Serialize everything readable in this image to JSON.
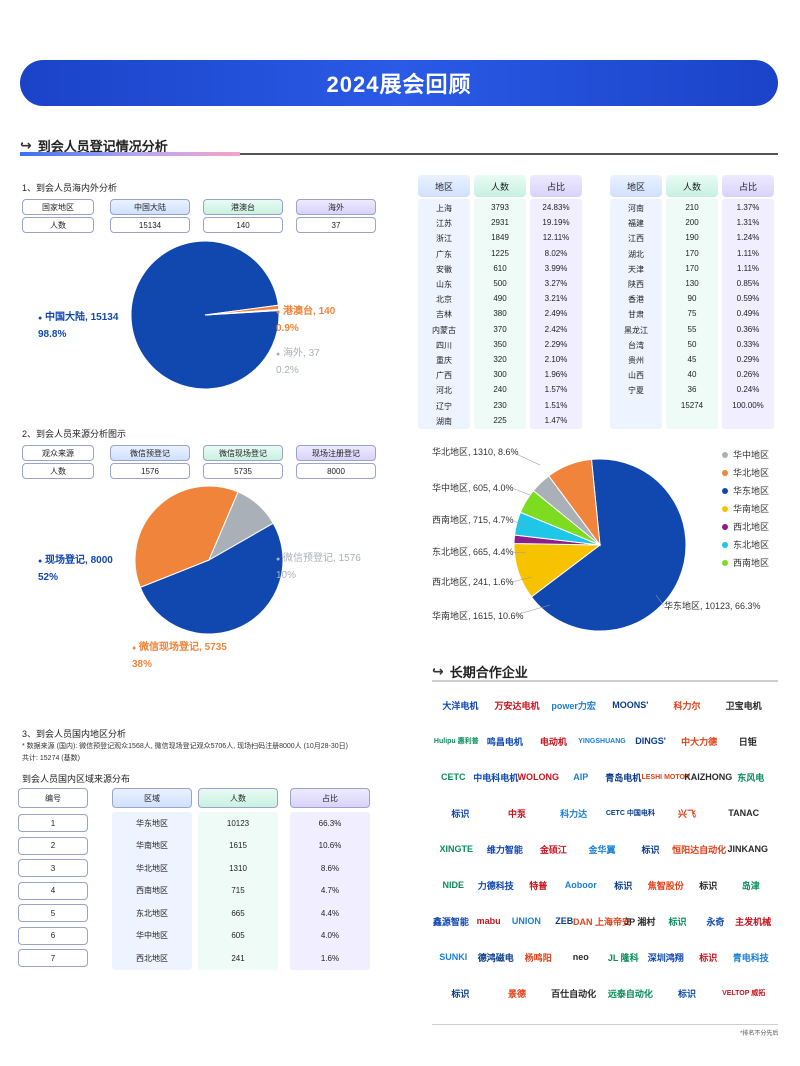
{
  "banner": {
    "title": "2024展会回顾"
  },
  "section1": {
    "title": "到会人员登记情况分析"
  },
  "sub1": {
    "title": "1、到会人员海内外分析",
    "row_label_1": "国家地区",
    "row_label_2": "人数",
    "headers": [
      "中国大陆",
      "港澳台",
      "海外"
    ],
    "values": [
      "15134",
      "140",
      "37"
    ]
  },
  "pie1": {
    "labels": [
      {
        "name": "中国大陆, 15134",
        "pct": "98.8%",
        "color": "#1048b0"
      },
      {
        "name": "港澳台, 140",
        "pct": "0.9%",
        "color": "#f0843a"
      },
      {
        "name": "海外, 37",
        "pct": "0.2%",
        "color": "#aab0b8"
      }
    ]
  },
  "provinces": {
    "header": [
      "地区",
      "人数",
      "占比"
    ],
    "left": [
      [
        "上海",
        "3793",
        "24.83%"
      ],
      [
        "江苏",
        "2931",
        "19.19%"
      ],
      [
        "浙江",
        "1849",
        "12.11%"
      ],
      [
        "广东",
        "1225",
        "8.02%"
      ],
      [
        "安徽",
        "610",
        "3.99%"
      ],
      [
        "山东",
        "500",
        "3.27%"
      ],
      [
        "北京",
        "490",
        "3.21%"
      ],
      [
        "吉林",
        "380",
        "2.49%"
      ],
      [
        "内蒙古",
        "370",
        "2.42%"
      ],
      [
        "四川",
        "350",
        "2.29%"
      ],
      [
        "重庆",
        "320",
        "2.10%"
      ],
      [
        "广西",
        "300",
        "1.96%"
      ],
      [
        "河北",
        "240",
        "1.57%"
      ],
      [
        "辽宁",
        "230",
        "1.51%"
      ],
      [
        "湖南",
        "225",
        "1.47%"
      ]
    ],
    "right": [
      [
        "河南",
        "210",
        "1.37%"
      ],
      [
        "福建",
        "200",
        "1.31%"
      ],
      [
        "江西",
        "190",
        "1.24%"
      ],
      [
        "湖北",
        "170",
        "1.11%"
      ],
      [
        "天津",
        "170",
        "1.11%"
      ],
      [
        "陕西",
        "130",
        "0.85%"
      ],
      [
        "香港",
        "90",
        "0.59%"
      ],
      [
        "甘肃",
        "75",
        "0.49%"
      ],
      [
        "黑龙江",
        "55",
        "0.36%"
      ],
      [
        "台湾",
        "50",
        "0.33%"
      ],
      [
        "贵州",
        "45",
        "0.29%"
      ],
      [
        "山西",
        "40",
        "0.26%"
      ],
      [
        "宁夏",
        "36",
        "0.24%"
      ],
      [
        "",
        "15274",
        "100.00%"
      ]
    ]
  },
  "sub2": {
    "title": "2、到会人员来源分析图示",
    "row_label_1": "观众来源",
    "row_label_2": "人数",
    "headers": [
      "微信预登记",
      "微信现场登记",
      "现场注册登记"
    ],
    "values": [
      "1576",
      "5735",
      "8000"
    ]
  },
  "pie2": {
    "labels": [
      {
        "name": "现场登记, 8000",
        "pct": "52%",
        "color": "#1048b0"
      },
      {
        "name": "微信预登记, 1576",
        "pct": "10%",
        "color": "#aab0b8"
      },
      {
        "name": "微信现场登记, 5735",
        "pct": "38%",
        "color": "#f0843a"
      }
    ]
  },
  "pie3": {
    "legend": [
      {
        "name": "华中地区",
        "color": "#aab0b8"
      },
      {
        "name": "华北地区",
        "color": "#f0843a"
      },
      {
        "name": "华东地区",
        "color": "#1048b0"
      },
      {
        "name": "华南地区",
        "color": "#f7c300"
      },
      {
        "name": "西北地区",
        "color": "#8a1f8a"
      },
      {
        "name": "东北地区",
        "color": "#1fc6e8"
      },
      {
        "name": "西南地区",
        "color": "#7ddc1f"
      }
    ],
    "callouts": [
      "华北地区, 1310, 8.6%",
      "华中地区, 605, 4.0%",
      "西南地区, 715, 4.7%",
      "东北地区, 665, 4.4%",
      "西北地区, 241, 1.6%",
      "华南地区, 1615, 10.6%",
      "华东地区, 10123, 66.3%"
    ]
  },
  "sub3": {
    "title": "3、到会人员国内地区分析",
    "note1": "* 数据来源 (国内): 微信预登记观众1568人, 微信现场登记观众5706人, 现场扫码注册8000人 (10月28-30日)",
    "note2": "共计: 15274 (基数)",
    "table_title": "到会人员国内区域来源分布",
    "header": [
      "编号",
      "区域",
      "人数",
      "占比"
    ],
    "rows": [
      [
        "1",
        "华东地区",
        "10123",
        "66.3%"
      ],
      [
        "2",
        "华南地区",
        "1615",
        "10.6%"
      ],
      [
        "3",
        "华北地区",
        "1310",
        "8.6%"
      ],
      [
        "4",
        "西南地区",
        "715",
        "4.7%"
      ],
      [
        "5",
        "东北地区",
        "665",
        "4.4%"
      ],
      [
        "6",
        "华中地区",
        "605",
        "4.0%"
      ],
      [
        "7",
        "西北地区",
        "241",
        "1.6%"
      ]
    ]
  },
  "partners": {
    "title": "长期合作企业",
    "logos": [
      [
        "大洋电机",
        "万安达电机",
        "power力宏",
        "MOONS'",
        "科力尔",
        "卫宝电机"
      ],
      [
        "Hulipu 惠利普",
        "鸣昌电机",
        "电动机",
        "YINGSHUANG",
        "DINGS'",
        "中大力德",
        "日钜"
      ],
      [
        "CETC",
        "中电科电机",
        "WOLONG",
        "AIP",
        "青岛电机",
        "LESHI MOTOR",
        "KAIZHONG",
        "东风电"
      ],
      [
        "标识",
        "中泵",
        "科力达",
        "CETC 中国电科",
        "兴飞",
        "TANAC"
      ],
      [
        "XINGTE",
        "维力智能",
        "金硕江",
        "金华翼",
        "标识",
        "恒阳达自动化",
        "JINKANG"
      ],
      [
        "NIDE",
        "力德科技",
        "特普",
        "Aoboor",
        "标识",
        "焦智股份",
        "标识",
        "岛津"
      ],
      [
        "鑫源智能",
        "mabu",
        "UNION",
        "ZEB",
        "DAN 上海帝安",
        "JP 湘村",
        "标识",
        "永奇",
        "主发机械"
      ],
      [
        "SUNKI",
        "德鸿磁电",
        "杨鸣阳",
        "neo",
        "JL 隆科",
        "深圳鸿翔",
        "标识",
        "青电科技"
      ],
      [
        "标识",
        "景德",
        "百仕自动化",
        "远泰自动化",
        "标识",
        "VELTOP 威拓"
      ]
    ],
    "footnote": "*排名不分先后"
  },
  "chart_data": [
    {
      "type": "pie",
      "title": "",
      "categories": [
        "中国大陆",
        "港澳台",
        "海外"
      ],
      "values": [
        15134,
        140,
        37
      ],
      "percent": [
        98.8,
        0.9,
        0.2
      ]
    },
    {
      "type": "pie",
      "title": "",
      "categories": [
        "现场登记",
        "微信现场登记",
        "微信预登记"
      ],
      "values": [
        8000,
        5735,
        1576
      ],
      "percent": [
        52,
        38,
        10
      ]
    },
    {
      "type": "pie",
      "title": "",
      "categories": [
        "华东地区",
        "华南地区",
        "西北地区",
        "东北地区",
        "西南地区",
        "华中地区",
        "华北地区"
      ],
      "values": [
        10123,
        1615,
        241,
        665,
        715,
        605,
        1310
      ],
      "percent": [
        66.3,
        10.6,
        1.6,
        4.4,
        4.7,
        4.0,
        8.6
      ],
      "legend": "right"
    }
  ]
}
